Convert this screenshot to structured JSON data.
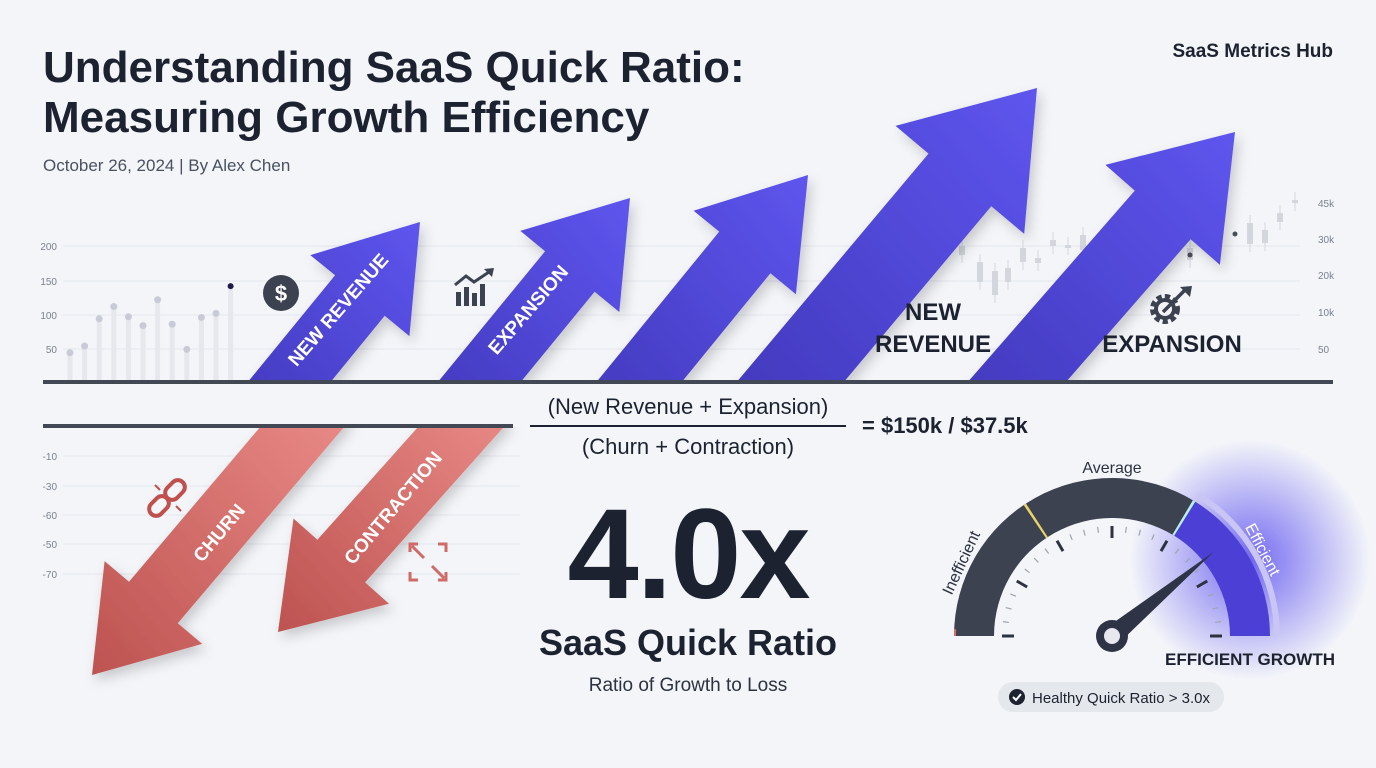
{
  "header": {
    "title_line1": "Understanding SaaS Quick Ratio:",
    "title_line2": "Measuring Growth Efficiency",
    "byline": "October 26, 2024 | By Alex Chen",
    "brand": "SaaS Metrics Hub"
  },
  "growth": {
    "arrow_labels": [
      "NEW REVENUE",
      "EXPANSION"
    ],
    "label_new_revenue_1": "NEW",
    "label_new_revenue_2": "REVENUE",
    "label_expansion": "EXPANSION",
    "left_axis_ticks": [
      "200",
      "150",
      "100",
      "50"
    ],
    "right_axis_ticks": [
      "45k",
      "30k",
      "20k",
      "10k",
      "50"
    ],
    "icons": [
      "dollar-icon",
      "bar-chart-growth-icon",
      "gear-growth-icon"
    ]
  },
  "loss": {
    "arrow_labels": [
      "CHURN",
      "CONTRACTION"
    ],
    "axis_ticks": [
      "-10",
      "-30",
      "-60",
      "-50",
      "-70"
    ],
    "icons": [
      "broken-link-icon",
      "contract-arrows-icon"
    ]
  },
  "formula": {
    "numerator": "(New Revenue + Expansion)",
    "denominator": "(Churn + Contraction)",
    "result": "= $150k / $37.5k"
  },
  "ratio": {
    "value": "4.0x",
    "label": "SaaS Quick Ratio",
    "sublabel": "Ratio of Growth to Loss"
  },
  "gauge": {
    "labels": {
      "low": "Inefficient",
      "mid": "Average",
      "high": "Efficient"
    },
    "status": "EFFICIENT GROWTH",
    "badge": "Healthy Quick Ratio > 3.0x",
    "needle_fraction": 0.78,
    "colors": {
      "track": "#3d4250",
      "efficient": "#4b3fd6",
      "divider_low": "#e8d36a",
      "divider_high": "#b8eef0"
    }
  },
  "colors": {
    "growth": "#4c41d2",
    "loss": "#d06a67",
    "text": "#1c2230"
  },
  "bg_chart_values": [
    40,
    50,
    90,
    108,
    93,
    80,
    118,
    82,
    45,
    92,
    98,
    138
  ]
}
